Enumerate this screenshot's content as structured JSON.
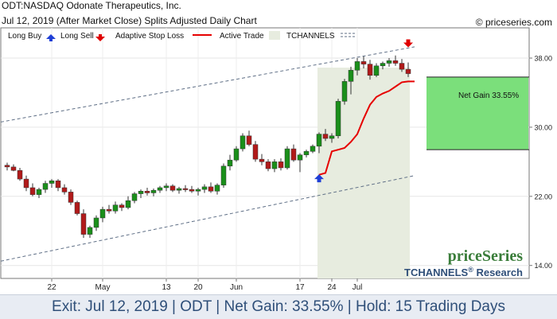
{
  "header": {
    "ticker_name": "ODT:NASDAQ Odonate Therapeutics, Inc.",
    "subtitle": "Jul 12, 2019 (After Market Close)  Splits Adjusted Daily Chart",
    "copyright": "© priceseries.com"
  },
  "legend": {
    "long_buy": "Long Buy",
    "long_sell": "Long Sell",
    "adaptive_stop": "Adaptive Stop Loss",
    "active_trade": "Active Trade",
    "tchannels": "TCHANNELS"
  },
  "colors": {
    "up": "#1a8f1a",
    "down": "#b11a1a",
    "stop": "#e60000",
    "trade_band": "#e7ecdf",
    "gain_box": "#7bdf7b",
    "channel": "#5f6f86",
    "buy_arrow": "#1f3fd6",
    "sell_arrow": "#e00000"
  },
  "brand": {
    "logo": "priceSeries",
    "tchannels": "TCHANNELS",
    "reg": "®",
    "research": " Research"
  },
  "net_gain_label": "Net Gain 33.55%",
  "footer": {
    "text": "Exit: Jul 12, 2019 | ODT | Net Gain: 33.55% | Hold: 15 Trading Days"
  },
  "chart_data": {
    "type": "candlestick",
    "ylim": [
      12.5,
      41.5
    ],
    "y_ticks": [
      14,
      22,
      30,
      38
    ],
    "y_tick_labels": [
      "14.00",
      "22.00",
      "30.00",
      "38.00"
    ],
    "x_tick_labels": [
      "22",
      "May",
      "13",
      "20",
      "Jun",
      "17",
      "24",
      "Jul"
    ],
    "x_tick_positions": [
      7,
      15,
      25,
      30,
      36,
      46,
      51,
      55
    ],
    "candles": [
      [
        25.6,
        25.9,
        25.0,
        25.4
      ],
      [
        25.4,
        25.7,
        24.9,
        25.0
      ],
      [
        25.0,
        25.3,
        23.8,
        24.0
      ],
      [
        24.0,
        24.4,
        22.6,
        23.0
      ],
      [
        23.0,
        23.5,
        22.0,
        22.2
      ],
      [
        22.2,
        23.0,
        21.8,
        22.8
      ],
      [
        22.8,
        23.8,
        22.4,
        23.5
      ],
      [
        23.5,
        24.0,
        23.0,
        23.8
      ],
      [
        23.8,
        24.0,
        22.6,
        23.0
      ],
      [
        23.0,
        23.4,
        22.2,
        22.5
      ],
      [
        22.5,
        22.8,
        21.0,
        21.3
      ],
      [
        21.3,
        21.5,
        19.8,
        20.0
      ],
      [
        20.0,
        20.5,
        17.2,
        17.6
      ],
      [
        17.6,
        18.6,
        17.2,
        18.4
      ],
      [
        18.4,
        19.8,
        18.0,
        19.5
      ],
      [
        19.5,
        20.8,
        19.0,
        20.5
      ],
      [
        20.5,
        21.0,
        20.0,
        20.3
      ],
      [
        20.3,
        21.4,
        20.0,
        21.0
      ],
      [
        21.0,
        21.2,
        20.3,
        20.7
      ],
      [
        20.7,
        22.0,
        20.5,
        21.5
      ],
      [
        21.5,
        22.5,
        21.2,
        22.3
      ],
      [
        22.3,
        22.8,
        21.8,
        22.6
      ],
      [
        22.6,
        23.0,
        22.1,
        22.4
      ],
      [
        22.4,
        22.9,
        22.0,
        22.7
      ],
      [
        22.7,
        23.2,
        22.4,
        23.0
      ],
      [
        23.0,
        23.5,
        22.6,
        23.2
      ],
      [
        23.2,
        23.4,
        22.5,
        22.7
      ],
      [
        22.7,
        23.1,
        22.3,
        22.9
      ],
      [
        22.9,
        23.3,
        22.5,
        22.8
      ],
      [
        22.8,
        23.2,
        22.4,
        22.6
      ],
      [
        22.6,
        23.0,
        22.1,
        22.8
      ],
      [
        22.8,
        23.4,
        22.4,
        23.1
      ],
      [
        23.1,
        23.6,
        22.4,
        22.6
      ],
      [
        22.6,
        23.5,
        22.2,
        23.3
      ],
      [
        23.3,
        25.8,
        23.0,
        25.5
      ],
      [
        25.5,
        26.8,
        25.0,
        26.2
      ],
      [
        26.2,
        27.8,
        26.0,
        27.5
      ],
      [
        27.5,
        29.3,
        27.2,
        29.0
      ],
      [
        29.0,
        29.6,
        27.8,
        28.0
      ],
      [
        28.0,
        28.4,
        26.0,
        26.3
      ],
      [
        26.3,
        26.9,
        25.6,
        26.0
      ],
      [
        26.0,
        26.3,
        24.9,
        25.2
      ],
      [
        25.2,
        26.3,
        24.8,
        26.0
      ],
      [
        26.0,
        26.4,
        25.0,
        25.3
      ],
      [
        25.3,
        27.8,
        25.1,
        27.5
      ],
      [
        27.5,
        28.0,
        26.0,
        26.2
      ],
      [
        26.2,
        27.0,
        24.8,
        26.8
      ],
      [
        26.8,
        27.4,
        26.5,
        27.2
      ],
      [
        27.2,
        28.0,
        27.0,
        27.8
      ],
      [
        27.8,
        29.4,
        27.0,
        29.2
      ],
      [
        29.2,
        29.8,
        28.4,
        28.7
      ],
      [
        28.7,
        29.3,
        28.2,
        29.0
      ],
      [
        29.0,
        33.3,
        28.7,
        33.0
      ],
      [
        33.0,
        35.6,
        32.6,
        35.3
      ],
      [
        35.3,
        37.0,
        33.8,
        36.6
      ],
      [
        36.6,
        38.0,
        36.0,
        37.6
      ],
      [
        37.6,
        38.2,
        36.8,
        37.3
      ],
      [
        37.3,
        37.8,
        35.5,
        36.0
      ],
      [
        36.0,
        37.4,
        35.8,
        37.1
      ],
      [
        37.1,
        37.6,
        36.7,
        37.4
      ],
      [
        37.4,
        38.0,
        37.0,
        37.7
      ],
      [
        37.7,
        38.3,
        37.1,
        37.4
      ],
      [
        37.4,
        37.9,
        36.4,
        36.7
      ],
      [
        36.7,
        37.5,
        35.8,
        36.2
      ]
    ],
    "stop_loss": {
      "start_index": 49,
      "values": [
        24.5,
        24.7,
        27.2,
        27.4,
        27.6,
        28.3,
        29.2,
        31.0,
        32.6,
        33.5,
        33.9,
        34.2,
        34.7,
        35.2,
        35.3,
        35.3
      ]
    },
    "channel_upper": [
      [
        0,
        30.6
      ],
      [
        64,
        39.3
      ]
    ],
    "channel_lower": [
      [
        0,
        14.5
      ],
      [
        64,
        24.4
      ]
    ],
    "active_trade": {
      "entry_index": 49,
      "exit_index": 63
    },
    "buy": {
      "index": 49,
      "price": 24.0
    },
    "sell": {
      "index": 63,
      "price": 39.8
    },
    "gain_box": {
      "top": 35.8,
      "bottom": 27.4
    }
  }
}
